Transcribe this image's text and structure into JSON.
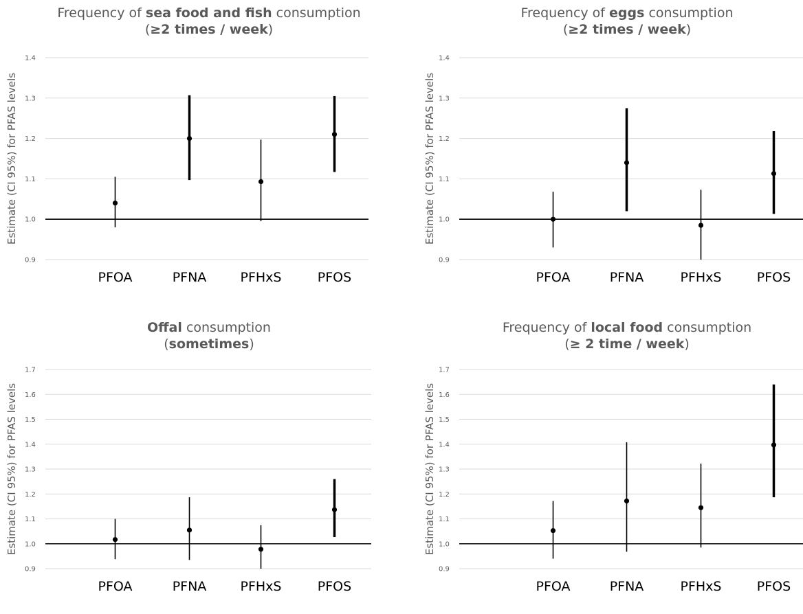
{
  "chart_data": [
    {
      "type": "errorbar",
      "title": {
        "pre": "Frequency of ",
        "bold": "sea food and fish",
        "post": " consumption"
      },
      "subtitle": {
        "pre": "(",
        "bold": "≥2 times / week",
        "post": ")"
      },
      "ylabel": "Estimate (CI 95%) for PFAS levels",
      "ylim": [
        0.9,
        1.4
      ],
      "yticks": [
        "0.9",
        "1.0",
        "1.1",
        "1.2",
        "1.3",
        "1.4"
      ],
      "reference_line": 1.0,
      "categories": [
        "PFOA",
        "PFNA",
        "PFHxS",
        "PFOS"
      ],
      "estimate": [
        1.04,
        1.2,
        1.093,
        1.21
      ],
      "ci_low": [
        0.98,
        1.097,
        0.995,
        1.117
      ],
      "ci_high": [
        1.105,
        1.307,
        1.197,
        1.305
      ],
      "thick": [
        false,
        true,
        false,
        true
      ]
    },
    {
      "type": "errorbar",
      "title": {
        "pre": "Frequency of ",
        "bold": "eggs",
        "post": "  consumption"
      },
      "subtitle": {
        "pre": "(",
        "bold": "≥2 times / week",
        "post": ")"
      },
      "ylabel": "Estimate (CI 95%) for PFAS levels",
      "ylim": [
        0.9,
        1.4
      ],
      "yticks": [
        "0.9",
        "1.0",
        "1.1",
        "1.2",
        "1.3",
        "1.4"
      ],
      "reference_line": 1.0,
      "categories": [
        "PFOA",
        "PFNA",
        "PFHxS",
        "PFOS"
      ],
      "estimate": [
        1.0,
        1.14,
        0.985,
        1.113
      ],
      "ci_low": [
        0.93,
        1.02,
        0.9,
        1.013
      ],
      "ci_high": [
        1.068,
        1.275,
        1.073,
        1.218
      ],
      "thick": [
        false,
        true,
        false,
        true
      ]
    },
    {
      "type": "errorbar",
      "title": {
        "pre": "",
        "bold": "Offal",
        "post": " consumption"
      },
      "subtitle": {
        "pre": "(",
        "bold": "sometimes",
        "post": ")"
      },
      "ylabel": "Estimate (CI 95%) for PFAS levels",
      "ylim": [
        0.9,
        1.7
      ],
      "yticks": [
        "0.9",
        "1.0",
        "1.1",
        "1.2",
        "1.3",
        "1.4",
        "1.5",
        "1.6",
        "1.7"
      ],
      "reference_line": 1.0,
      "categories": [
        "PFOA",
        "PFNA",
        "PFHxS",
        "PFOS"
      ],
      "estimate": [
        1.017,
        1.055,
        0.978,
        1.137
      ],
      "ci_low": [
        0.938,
        0.935,
        0.9,
        1.027
      ],
      "ci_high": [
        1.1,
        1.187,
        1.075,
        1.26
      ],
      "thick": [
        false,
        false,
        false,
        true
      ]
    },
    {
      "type": "errorbar",
      "title": {
        "pre": "Frequency of ",
        "bold": "local food",
        "post": " consumption"
      },
      "subtitle": {
        "pre": "(",
        "bold": "≥ 2 time / week",
        "post": ")"
      },
      "ylabel": "Estimate (CI 95%) for PFAS levels",
      "ylim": [
        0.9,
        1.7
      ],
      "yticks": [
        "0.9",
        "1.0",
        "1.1",
        "1.2",
        "1.3",
        "1.4",
        "1.5",
        "1.6",
        "1.7"
      ],
      "reference_line": 1.0,
      "categories": [
        "PFOA",
        "PFNA",
        "PFHxS",
        "PFOS"
      ],
      "estimate": [
        1.053,
        1.172,
        1.145,
        1.397
      ],
      "ci_low": [
        0.94,
        0.968,
        0.985,
        1.187
      ],
      "ci_high": [
        1.172,
        1.408,
        1.322,
        1.64
      ],
      "thick": [
        false,
        false,
        false,
        true
      ]
    }
  ]
}
